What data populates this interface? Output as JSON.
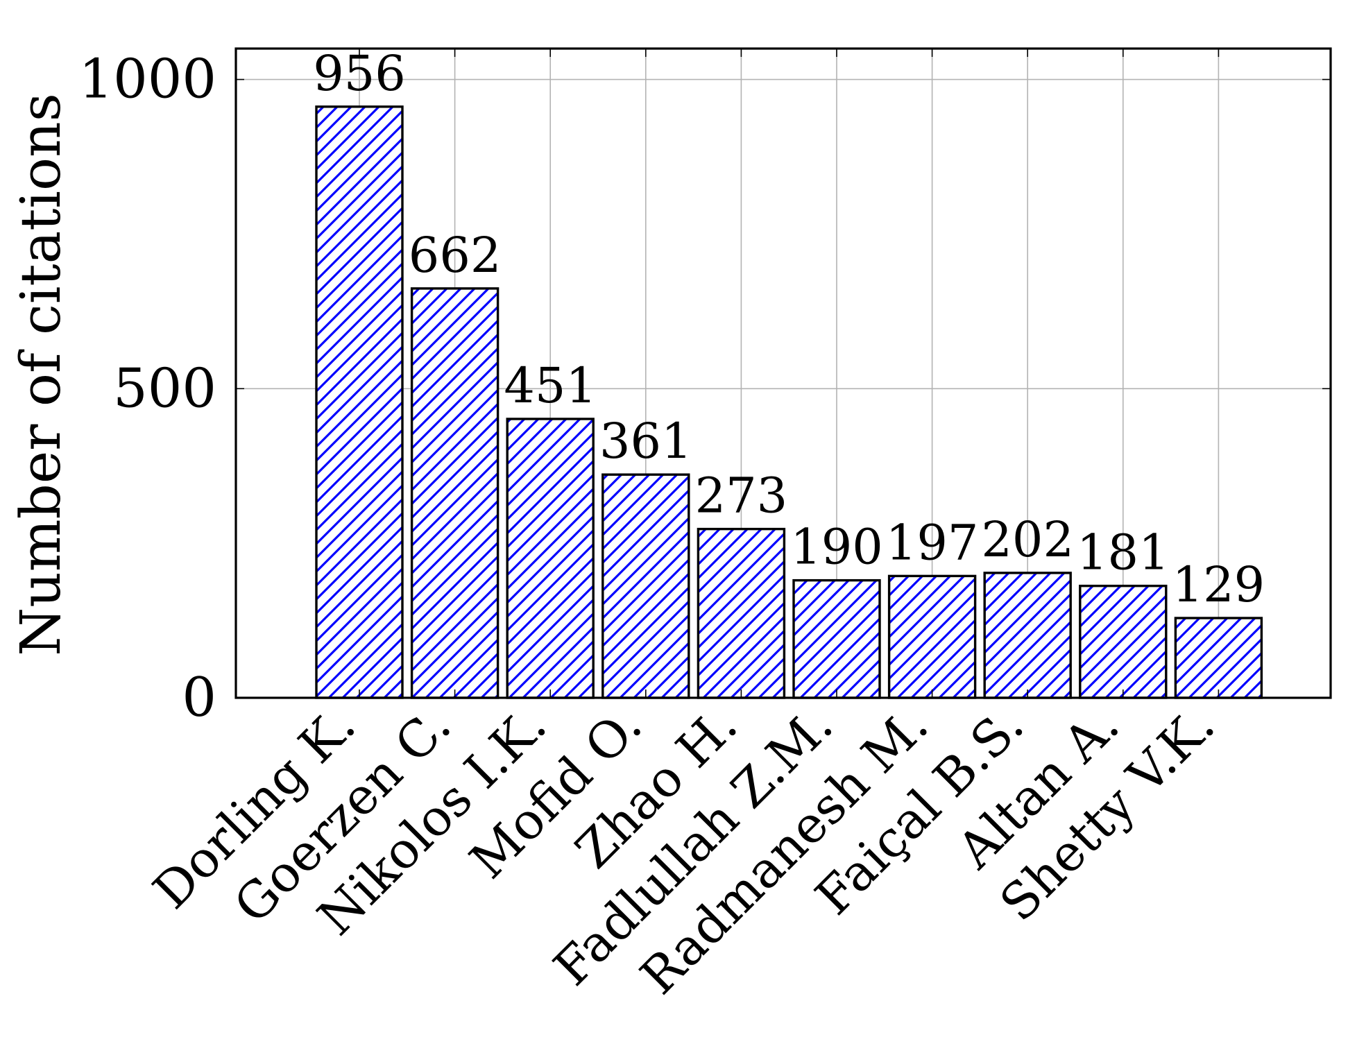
{
  "chart_data": {
    "type": "bar",
    "categories": [
      "Dorling K.",
      "Goerzen C.",
      "Nikolos I.K.",
      "Mofid O.",
      "Zhao H.",
      "Fadlullah Z.M.",
      "Radmanesh M.",
      "Faiçal B.S.",
      "Altan A.",
      "Shetty V.K."
    ],
    "values": [
      956,
      662,
      451,
      361,
      273,
      190,
      197,
      202,
      181,
      129
    ],
    "value_labels": [
      "956",
      "662",
      "451",
      "361",
      "273",
      "190",
      "197",
      "202",
      "181",
      "129"
    ],
    "title": "",
    "xlabel": "",
    "ylabel": "Number of citations",
    "ylim": [
      0,
      1050
    ],
    "yticks": [
      0,
      500,
      1000
    ],
    "ytick_labels": [
      "0",
      "500",
      "1000"
    ],
    "grid": true,
    "bar_fill": "hatched",
    "bar_color": "#0000ff",
    "edge_color": "#000000"
  }
}
